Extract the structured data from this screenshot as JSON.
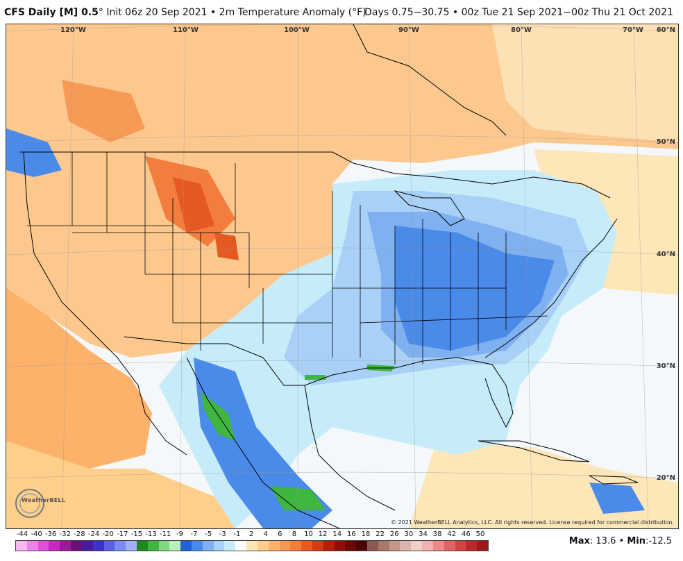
{
  "header": {
    "model": "CFS Daily [M] 0.5",
    "init": "° Init 06z 20 Sep 2021 • 2m Temperature Anomaly (°F)",
    "range": "Days 0.75−30.75 • 00z Tue 21 Sep 2021−00z Thu 21 Oct 2021"
  },
  "map": {
    "longitudes": [
      "120°W",
      "110°W",
      "100°W",
      "90°W",
      "80°W",
      "70°W"
    ],
    "latitudes": [
      "60°N",
      "50°N",
      "40°N",
      "30°N",
      "20°N"
    ],
    "logo": "WeatherBELL",
    "copyright": "© 2021 WeatherBELL Analytics, LLC. All rights reserved. License required for commercial distribution."
  },
  "colorbar": {
    "labels": [
      "-44",
      "-40",
      "-36",
      "-32",
      "-28",
      "-24",
      "-20",
      "-17",
      "-15",
      "-13",
      "-11",
      "-9",
      "-7",
      "-5",
      "-3",
      "-1",
      "2",
      "4",
      "6",
      "8",
      "10",
      "12",
      "14",
      "16",
      "18",
      "22",
      "26",
      "30",
      "34",
      "38",
      "42",
      "46",
      "50"
    ],
    "colors": [
      "#f7b8f0",
      "#ee82e6",
      "#e04fd8",
      "#c42cbf",
      "#9b1a9a",
      "#6b0f78",
      "#4a1c9a",
      "#3c33c4",
      "#5a62e0",
      "#7c8af0",
      "#9fb0f7",
      "#1e8a1e",
      "#3fb63f",
      "#7fd87f",
      "#b9efb9",
      "#2060d8",
      "#4a8ae8",
      "#7fb0f0",
      "#a9d0f7",
      "#c6ecfa",
      "#ffffff",
      "#fde6b8",
      "#fdcf8a",
      "#fcb26a",
      "#f79a56",
      "#f27d3c",
      "#e55a22",
      "#d13a12",
      "#b41f0a",
      "#8e0f06",
      "#6b0804",
      "#4a0402",
      "#8a5a50",
      "#a87868",
      "#c49888",
      "#dcb4a8",
      "#f0cfc6",
      "#f4b0b0",
      "#ec8a8a",
      "#e06666",
      "#d04444",
      "#b82a2a",
      "#9c1818"
    ]
  },
  "stats": {
    "max_label": "Max",
    "max_value": "13.6",
    "sep": "•",
    "min_label": "Min",
    "min_value": "-12.5"
  }
}
